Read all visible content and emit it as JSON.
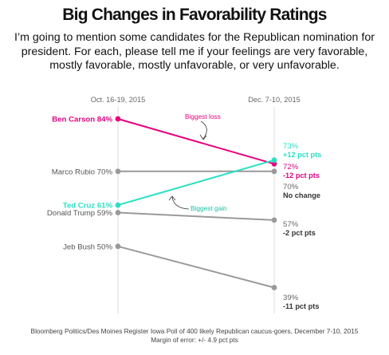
{
  "title": "Big Changes in Favorability Ratings",
  "subtitle": "I’m going to mention some candidates for the Republican nomination for president. For each, please tell me if your feelings are very favorable, mostly favorable, mostly unfavorable, or very unfavorable.",
  "footer": {
    "source": "Bloomberg Politics/Des Moines Register Iowa Poll of 400 likely Republican caucus-goers, December 7-10, 2015",
    "margin": "Margin of error: +/- 4.9 pct pts"
  },
  "colors": {
    "carson": "#e6007e",
    "cruz": "#2be0c3",
    "other": "#9a9a9a",
    "axis": "#dddddd"
  },
  "chart_data": {
    "type": "line",
    "x": [
      "Oct. 16-19, 2015",
      "Dec. 7-10, 2015"
    ],
    "y_unit": "%",
    "series": [
      {
        "name": "Ben Carson",
        "left_label": "Ben Carson 84%",
        "values": [
          84,
          72
        ],
        "right_value": "72%",
        "right_change": "-12 pct pts",
        "color_key": "carson"
      },
      {
        "name": "Marco Rubio",
        "left_label": "Marco Rubio 70%",
        "values": [
          70,
          70
        ],
        "right_value": "70%",
        "right_change": "No change",
        "color_key": "other"
      },
      {
        "name": "Ted Cruz",
        "left_label": "Ted Cruz 61%",
        "values": [
          61,
          73
        ],
        "right_value": "73%",
        "right_change": "+12 pct pts",
        "color_key": "cruz"
      },
      {
        "name": "Donald Trump",
        "left_label": "Donald Trump 59%",
        "values": [
          59,
          57
        ],
        "right_value": "57%",
        "right_change": "-2 pct pts",
        "color_key": "other"
      },
      {
        "name": "Jeb Bush",
        "left_label": "Jeb Bush 50%",
        "values": [
          50,
          39
        ],
        "right_value": "39%",
        "right_change": "-11 pct pts",
        "color_key": "other"
      }
    ],
    "annotations": [
      {
        "text": "Biggest loss",
        "series": "Ben Carson"
      },
      {
        "text": "Biggest gain",
        "series": "Ted Cruz"
      }
    ]
  }
}
